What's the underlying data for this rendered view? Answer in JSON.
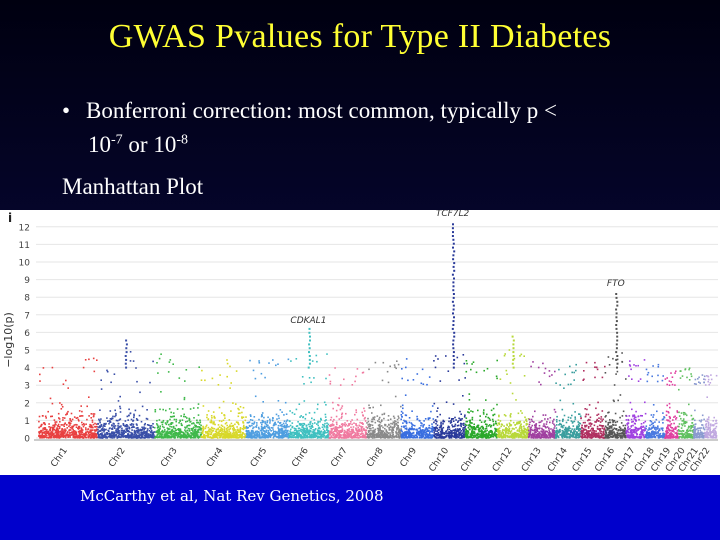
{
  "slide": {
    "title": "GWAS Pvalues for Type II Diabetes",
    "bullet_symbol": "•",
    "bullet_text_a": "Bonferroni correction: most common, typically p <",
    "bullet_base_1": "10",
    "bullet_exp_1": "-7",
    "bullet_or": " or ",
    "bullet_base_2": "10",
    "bullet_exp_2": "-8",
    "subheading": "Manhattan Plot",
    "citation": "McCarthy et al, Nat Rev Genetics, 2008"
  },
  "chart_data": {
    "type": "scatter",
    "panel_label": "i",
    "ylabel": "−log10(p)",
    "ylim": [
      0,
      12.5
    ],
    "yticks": [
      0,
      1,
      2,
      3,
      4,
      5,
      6,
      7,
      8,
      9,
      10,
      11,
      12
    ],
    "categories": [
      "Chr1",
      "Chr2",
      "Chr3",
      "Chr4",
      "Chr5",
      "Chr6",
      "Chr7",
      "Chr8",
      "Chr9",
      "Chr10",
      "Chr11",
      "Chr12",
      "Chr13",
      "Chr14",
      "Chr15",
      "Chr16",
      "Chr17",
      "Chr18",
      "Chr19",
      "Chr20",
      "Chr21",
      "Chr22"
    ],
    "chromosome_colors": [
      "#e84040",
      "#3a4fa8",
      "#3fb84a",
      "#d8d82a",
      "#4f9ee0",
      "#40c0c0",
      "#f07aa0",
      "#8a8a8a",
      "#3a6fe0",
      "#2a3a9a",
      "#2aa82a",
      "#b8d83a",
      "#a040a0",
      "#3a9e9e",
      "#b03060",
      "#555555",
      "#a040e0",
      "#4a7ae0",
      "#e040a0",
      "#60c060",
      "#8a9ad0",
      "#c0a8e0"
    ],
    "series": [
      {
        "name": "Chr1",
        "max": 4.6
      },
      {
        "name": "Chr2",
        "max": 5.6
      },
      {
        "name": "Chr3",
        "max": 4.8
      },
      {
        "name": "Chr4",
        "max": 4.9
      },
      {
        "name": "Chr5",
        "max": 4.7
      },
      {
        "name": "Chr6",
        "max": 6.2
      },
      {
        "name": "Chr7",
        "max": 4.0
      },
      {
        "name": "Chr8",
        "max": 4.4
      },
      {
        "name": "Chr9",
        "max": 4.6
      },
      {
        "name": "Chr10",
        "max": 12.3
      },
      {
        "name": "Chr11",
        "max": 4.6
      },
      {
        "name": "Chr12",
        "max": 5.9
      },
      {
        "name": "Chr13",
        "max": 4.4
      },
      {
        "name": "Chr14",
        "max": 4.2
      },
      {
        "name": "Chr15",
        "max": 4.4
      },
      {
        "name": "Chr16",
        "max": 8.2
      },
      {
        "name": "Chr17",
        "max": 4.5
      },
      {
        "name": "Chr18",
        "max": 4.2
      },
      {
        "name": "Chr19",
        "max": 3.8
      },
      {
        "name": "Chr20",
        "max": 4.0
      },
      {
        "name": "Chr21",
        "max": 3.6
      },
      {
        "name": "Chr22",
        "max": 3.7
      }
    ],
    "annotations": [
      {
        "label": "TCF7L2",
        "chromosome": "Chr10",
        "y": 12.4
      },
      {
        "label": "FTO",
        "chromosome": "Chr16",
        "y": 8.4
      },
      {
        "label": "CDKAL1",
        "chromosome": "Chr6",
        "y": 6.3
      }
    ]
  }
}
